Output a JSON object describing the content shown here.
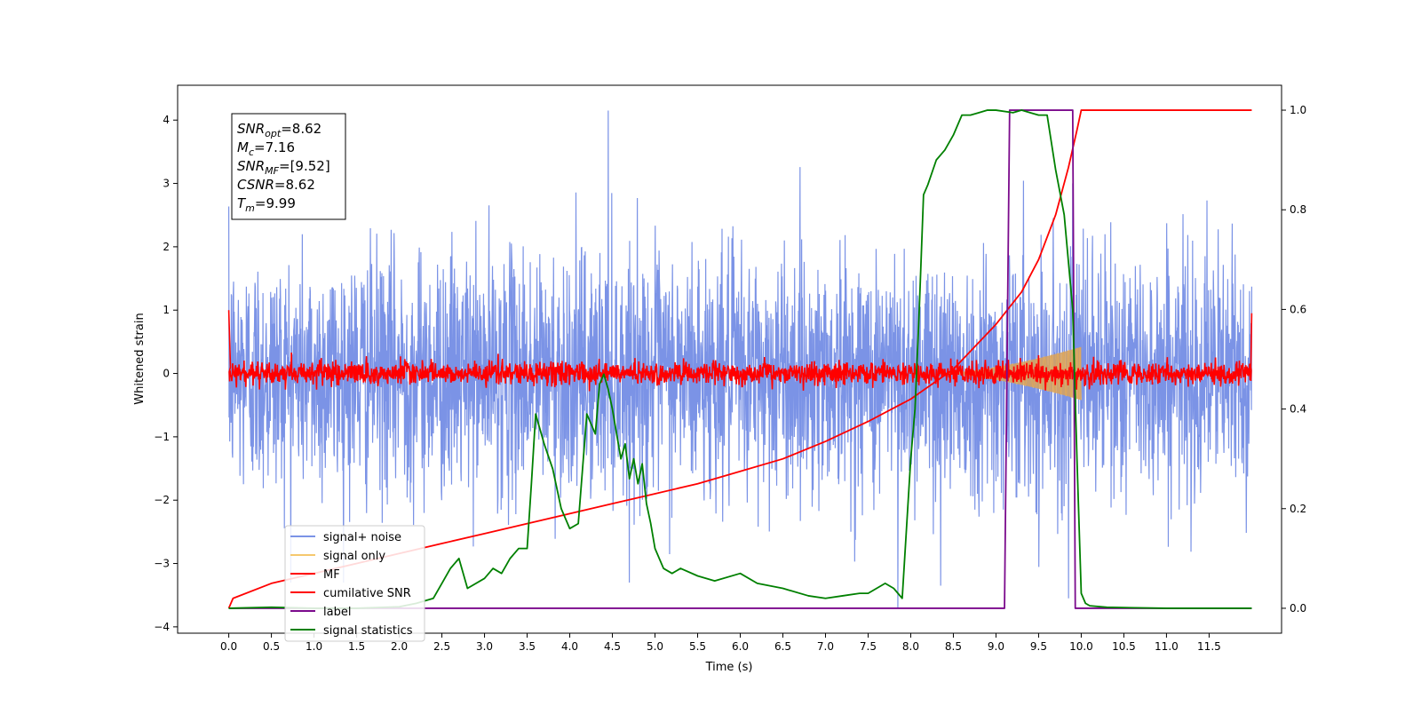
{
  "chart_data": {
    "type": "line",
    "xlabel": "Time (s)",
    "ylabel": "Whitened strain",
    "xlim": [
      -0.6,
      12.35
    ],
    "ylim_left": [
      -4.1,
      4.55
    ],
    "ylim_right": [
      -0.05,
      1.05
    ],
    "x_ticks": [
      0.0,
      0.5,
      1.0,
      1.5,
      2.0,
      2.5,
      3.0,
      3.5,
      4.0,
      4.5,
      5.0,
      5.5,
      6.0,
      6.5,
      7.0,
      7.5,
      8.0,
      8.5,
      9.0,
      9.5,
      10.0,
      10.5,
      11.0,
      11.5
    ],
    "x_tick_labels": [
      "0.0",
      "0.5",
      "1.0",
      "1.5",
      "2.0",
      "2.5",
      "3.0",
      "3.5",
      "4.0",
      "4.5",
      "5.0",
      "5.5",
      "6.0",
      "6.5",
      "7.0",
      "7.5",
      "8.0",
      "8.5",
      "9.0",
      "9.5",
      "10.0",
      "10.5",
      "11.0",
      "11.5"
    ],
    "y_ticks_left": [
      4,
      3,
      2,
      1,
      0,
      -1,
      -2,
      -3,
      -4
    ],
    "y_tick_labels_left": [
      "4",
      "3",
      "2",
      "1",
      "0",
      "−1",
      "−2",
      "−3",
      "−4"
    ],
    "y_ticks_right": [
      1.0,
      0.8,
      0.6,
      0.4,
      0.2,
      0.0
    ],
    "y_tick_labels_right": [
      "1.0",
      "0.8",
      "0.6",
      "0.4",
      "0.2",
      "0.0"
    ],
    "legend_placement": "lower-left",
    "annotation": [
      {
        "base": "SNR",
        "sub": "opt",
        "value": "=8.62"
      },
      {
        "base": "M",
        "sub": "c",
        "value": "=7.16"
      },
      {
        "base": "SNR",
        "sub": "MF",
        "value": "=[9.52]"
      },
      {
        "base": "CSNR",
        "sub": "",
        "value": "=8.62"
      },
      {
        "base": "T",
        "sub": "m",
        "value": "=9.99"
      }
    ],
    "series": [
      {
        "name": "signal+ noise",
        "axis": "left",
        "color": "#7b93e6",
        "kind": "noise",
        "x_range": [
          0.0,
          12.0
        ],
        "std": 0.95,
        "spikes": [
          [
            4.45,
            4.15
          ],
          [
            7.85,
            3.5
          ],
          [
            7.85,
            -3.7
          ],
          [
            9.85,
            -3.55
          ],
          [
            8.35,
            -3.35
          ],
          [
            9.9,
            3.0
          ]
        ]
      },
      {
        "name": "signal only",
        "axis": "left",
        "color": "#f5c86e",
        "kind": "chirp",
        "x_range": [
          8.3,
          10.0
        ],
        "amplitude_at_end": 0.42
      },
      {
        "name": "MF",
        "axis": "left",
        "color": "#ff0000",
        "kind": "noise",
        "x_range": [
          0.0,
          12.0
        ],
        "std": 0.09,
        "end_values": [
          1.0,
          0.95
        ]
      },
      {
        "name": "cumilative SNR",
        "axis": "right",
        "color": "#ff0000",
        "x": [
          0.0,
          0.05,
          0.5,
          1.0,
          1.5,
          2.0,
          2.5,
          3.0,
          3.5,
          4.0,
          4.5,
          5.0,
          5.5,
          6.0,
          6.5,
          7.0,
          7.5,
          8.0,
          8.5,
          9.0,
          9.3,
          9.5,
          9.7,
          9.85,
          9.95,
          10.0,
          12.0
        ],
        "y": [
          0.0,
          0.02,
          0.05,
          0.07,
          0.09,
          0.11,
          0.13,
          0.15,
          0.17,
          0.19,
          0.21,
          0.23,
          0.25,
          0.275,
          0.3,
          0.335,
          0.375,
          0.42,
          0.48,
          0.57,
          0.635,
          0.7,
          0.79,
          0.885,
          0.96,
          1.0,
          1.0
        ]
      },
      {
        "name": "label",
        "axis": "right",
        "color": "#7b0a8c",
        "x": [
          0.0,
          9.1,
          9.16,
          9.9,
          9.93,
          12.0
        ],
        "y": [
          0.0,
          0.0,
          1.0,
          1.0,
          0.0,
          0.0
        ]
      },
      {
        "name": "signal statistics",
        "axis": "right",
        "color": "#008000",
        "x": [
          0.0,
          0.5,
          1.0,
          1.5,
          2.0,
          2.2,
          2.4,
          2.5,
          2.6,
          2.7,
          2.8,
          3.0,
          3.1,
          3.2,
          3.3,
          3.4,
          3.5,
          3.55,
          3.6,
          3.7,
          3.8,
          3.9,
          4.0,
          4.1,
          4.2,
          4.3,
          4.35,
          4.4,
          4.45,
          4.5,
          4.6,
          4.65,
          4.7,
          4.75,
          4.8,
          4.85,
          4.9,
          4.95,
          5.0,
          5.1,
          5.2,
          5.3,
          5.5,
          5.7,
          6.0,
          6.2,
          6.5,
          6.8,
          7.0,
          7.2,
          7.4,
          7.5,
          7.7,
          7.8,
          7.9,
          8.0,
          8.05,
          8.1,
          8.15,
          8.2,
          8.3,
          8.4,
          8.5,
          8.6,
          8.7,
          8.8,
          8.9,
          9.0,
          9.2,
          9.3,
          9.4,
          9.5,
          9.6,
          9.7,
          9.8,
          9.9,
          9.95,
          10.0,
          10.05,
          10.1,
          10.3,
          11.0,
          12.0
        ],
        "y": [
          0.0,
          0.002,
          0.0,
          0.0,
          0.003,
          0.01,
          0.02,
          0.05,
          0.08,
          0.1,
          0.04,
          0.06,
          0.08,
          0.07,
          0.1,
          0.12,
          0.12,
          0.25,
          0.39,
          0.33,
          0.28,
          0.2,
          0.16,
          0.17,
          0.39,
          0.35,
          0.45,
          0.47,
          0.44,
          0.4,
          0.3,
          0.33,
          0.26,
          0.3,
          0.25,
          0.29,
          0.21,
          0.17,
          0.12,
          0.08,
          0.07,
          0.08,
          0.065,
          0.055,
          0.07,
          0.05,
          0.04,
          0.025,
          0.02,
          0.025,
          0.03,
          0.03,
          0.05,
          0.04,
          0.02,
          0.3,
          0.4,
          0.6,
          0.83,
          0.85,
          0.9,
          0.92,
          0.95,
          0.99,
          0.99,
          0.995,
          1.0,
          1.0,
          0.995,
          1.0,
          0.995,
          0.99,
          0.99,
          0.88,
          0.79,
          0.6,
          0.3,
          0.03,
          0.01,
          0.005,
          0.002,
          0.0,
          0.0
        ]
      }
    ]
  }
}
